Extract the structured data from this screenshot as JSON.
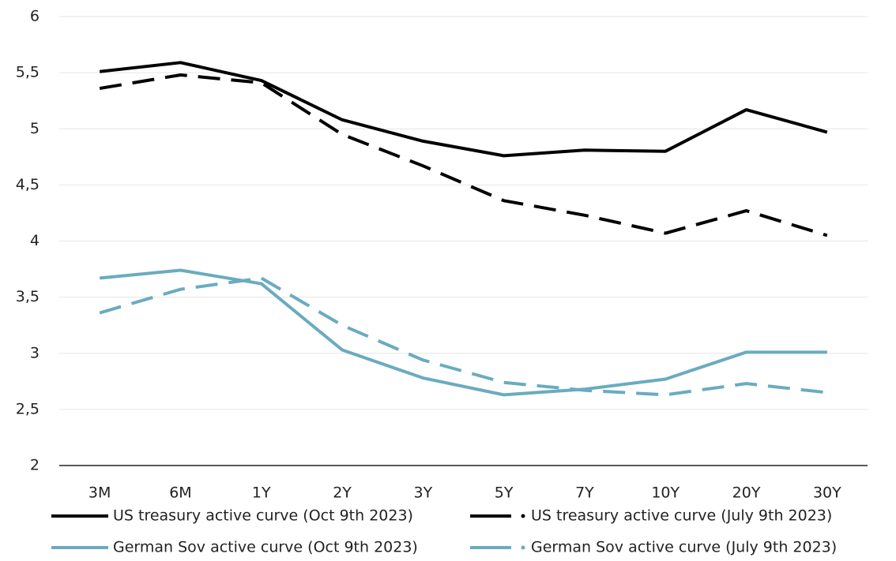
{
  "chart_data": {
    "type": "line",
    "categories": [
      "3M",
      "6M",
      "1Y",
      "2Y",
      "3Y",
      "5Y",
      "7Y",
      "10Y",
      "20Y",
      "30Y"
    ],
    "series": [
      {
        "name": "US treasury active curve (Oct 9th 2023)",
        "color": "#000000",
        "dash": false,
        "values": [
          5.51,
          5.59,
          5.43,
          5.08,
          4.89,
          4.76,
          4.81,
          4.8,
          5.17,
          4.97
        ]
      },
      {
        "name": "US treasury active curve (July 9th 2023)",
        "color": "#000000",
        "dash": true,
        "values": [
          5.36,
          5.48,
          5.41,
          4.95,
          4.67,
          4.36,
          4.23,
          4.07,
          4.27,
          4.05
        ]
      },
      {
        "name": "German Sov active curve (Oct 9th 2023)",
        "color": "#6aabbf",
        "dash": false,
        "values": [
          3.67,
          3.74,
          3.62,
          3.03,
          2.78,
          2.63,
          2.68,
          2.77,
          3.01,
          3.01
        ]
      },
      {
        "name": "German Sov active curve (July 9th 2023)",
        "color": "#6aabbf",
        "dash": true,
        "values": [
          3.36,
          3.57,
          3.67,
          3.25,
          2.94,
          2.74,
          2.67,
          2.63,
          2.73,
          2.65
        ]
      }
    ],
    "ylim": [
      2,
      6
    ],
    "yticks": [
      2,
      {
        "value": 2.5,
        "label": "2,5"
      },
      3,
      {
        "value": 3.5,
        "label": "3,5"
      },
      4,
      {
        "value": 4.5,
        "label": "4,5"
      },
      5,
      {
        "value": 5.5,
        "label": "5,5"
      },
      6
    ],
    "grid": true,
    "legend": "bottom"
  }
}
